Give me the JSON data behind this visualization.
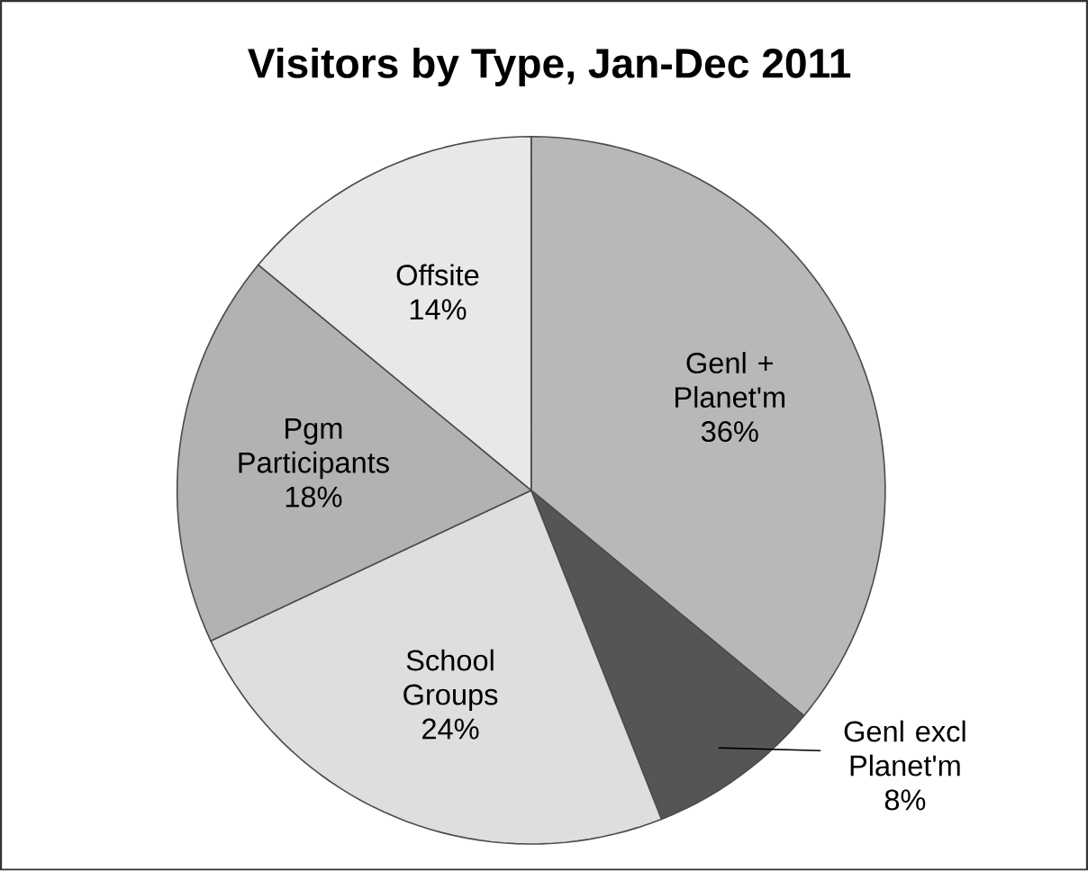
{
  "chart_data": {
    "type": "pie",
    "title": "Visitors by Type, Jan-Dec 2011",
    "categories": [
      "Genl + Planet'm",
      "Genl excl Planet'm",
      "School Groups",
      "Pgm Participants",
      "Offsite"
    ],
    "values": [
      36,
      8,
      24,
      18,
      14
    ],
    "value_labels": [
      "36%",
      "8%",
      "24%",
      "18%",
      "14%"
    ],
    "colors": [
      "#b8b8b8",
      "#555555",
      "#dedede",
      "#b2b2b2",
      "#e8e8e8"
    ]
  }
}
